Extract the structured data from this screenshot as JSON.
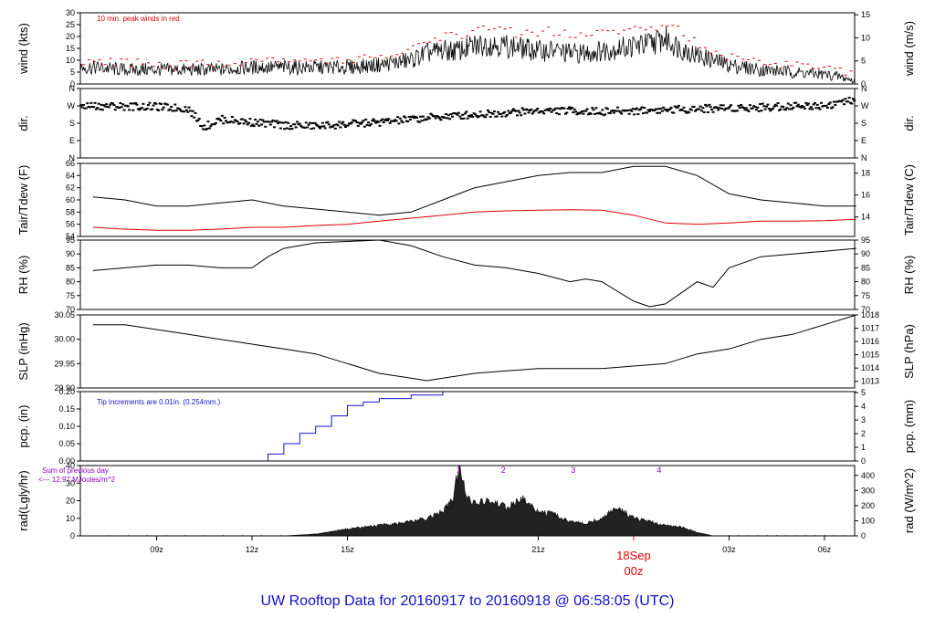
{
  "title": "UW Rooftop Data for 20160917  to  20160918 @ 06:58:05  (UTC)",
  "colors": {
    "series": "#000000",
    "red": "#e00000",
    "blue": "#1414d0",
    "purple": "#9000c0",
    "title": "#1010c8"
  },
  "chart_data": [
    {
      "type": "line",
      "ylabel_left": "wind (kts)",
      "ylabel_right": "wind (m/s)",
      "ylim_left": [
        0,
        30
      ],
      "ylim_right": [
        0,
        15.43
      ],
      "ticks_left": [
        "0",
        "5",
        "10",
        "15",
        "20",
        "25",
        "30"
      ],
      "ticks_right": [
        "0",
        "5",
        "10",
        "15"
      ],
      "annotation": "10 min. peak winds in red",
      "series": [
        {
          "role": "mean",
          "x": [
            7,
            8,
            9,
            10,
            11,
            12,
            13,
            14,
            15,
            16,
            17,
            17.5,
            18,
            18.5,
            19,
            19.5,
            20,
            20.5,
            21,
            21.5,
            22,
            22.5,
            23,
            23.5,
            24,
            24.5,
            25,
            25.5,
            26,
            27,
            28,
            29,
            30,
            30.5,
            31
          ],
          "values": [
            7,
            6,
            6,
            6,
            6,
            7,
            7,
            7,
            7,
            8,
            10,
            13,
            14,
            14,
            16,
            17,
            16,
            15,
            14,
            14,
            13,
            13,
            14,
            15,
            16,
            17,
            19,
            15,
            12,
            8,
            6,
            5,
            4,
            3,
            1
          ]
        },
        {
          "role": "peak",
          "x": [
            7,
            8,
            9,
            10,
            11,
            12,
            13,
            14,
            15,
            16,
            17,
            17.5,
            18,
            18.5,
            19,
            19.5,
            20,
            20.5,
            21,
            21.5,
            22,
            22.5,
            23,
            23.5,
            24,
            24.5,
            25,
            25.5,
            26,
            27,
            28,
            29,
            30,
            30.5,
            31
          ],
          "values": [
            9,
            9,
            8,
            8,
            8,
            10,
            11,
            11,
            10,
            11,
            14,
            18,
            20,
            20,
            22,
            24,
            22,
            21,
            22,
            22,
            20,
            20,
            21,
            22,
            23,
            23,
            25,
            22,
            17,
            11,
            9,
            8,
            6,
            5,
            3
          ]
        }
      ]
    },
    {
      "type": "scatter",
      "ylabel_left": "dir.",
      "ylabel_right": "dir.",
      "ticks_left": [
        "N",
        "E",
        "S",
        "W",
        "N"
      ],
      "ticks_right": [
        "N",
        "E",
        "S",
        "W",
        "N"
      ],
      "ylim": [
        0,
        360
      ],
      "x": [
        7,
        8,
        9,
        10,
        10.5,
        11,
        12,
        13,
        14,
        15,
        16,
        17,
        18,
        19,
        20,
        21,
        22,
        23,
        24,
        25,
        26,
        27,
        28,
        29,
        30,
        31
      ],
      "values": [
        270,
        268,
        265,
        255,
        160,
        200,
        185,
        170,
        165,
        175,
        185,
        200,
        215,
        225,
        235,
        245,
        245,
        240,
        245,
        250,
        255,
        260,
        262,
        270,
        272,
        300
      ]
    },
    {
      "type": "line",
      "ylabel_left": "Tair/Tdew (F)",
      "ylabel_right": "Tair/Tdew (C)",
      "ylim_left": [
        54,
        66
      ],
      "ylim_right": [
        12.22,
        18.89
      ],
      "ticks_left": [
        "54",
        "56",
        "58",
        "60",
        "62",
        "64",
        "66"
      ],
      "ticks_right": [
        "14",
        "16",
        "18"
      ],
      "series": [
        {
          "role": "tair",
          "x": [
            7,
            8,
            9,
            10,
            11,
            12,
            13,
            14,
            15,
            16,
            17,
            18,
            19,
            20,
            21,
            22,
            23,
            24,
            25,
            26,
            27,
            28,
            29,
            30,
            31
          ],
          "values": [
            60.5,
            60,
            59,
            59,
            59.5,
            60,
            59,
            58.5,
            58,
            57.5,
            58,
            60,
            62,
            63,
            64,
            64.5,
            64.5,
            65.5,
            65.5,
            64,
            61,
            60,
            59.5,
            59,
            59
          ]
        },
        {
          "role": "tdew",
          "x": [
            7,
            8,
            9,
            10,
            11,
            12,
            13,
            14,
            15,
            16,
            17,
            18,
            19,
            20,
            21,
            22,
            23,
            24,
            25,
            26,
            27,
            28,
            29,
            30,
            31
          ],
          "values": [
            55.5,
            55.2,
            55,
            55,
            55.2,
            55.5,
            55.5,
            55.8,
            56,
            56.5,
            57,
            57.5,
            58,
            58.2,
            58.3,
            58.4,
            58.3,
            57.5,
            56.2,
            56,
            56.2,
            56.5,
            56.5,
            56.6,
            56.8
          ]
        }
      ]
    },
    {
      "type": "line",
      "ylabel_left": "RH (%)",
      "ylabel_right": "RH (%)",
      "ylim": [
        70,
        95
      ],
      "ticks_left": [
        "70",
        "75",
        "80",
        "85",
        "90",
        "95"
      ],
      "ticks_right": [
        "70",
        "75",
        "80",
        "85",
        "90",
        "95"
      ],
      "x": [
        7,
        8,
        9,
        10,
        11,
        12,
        12.5,
        13,
        14,
        15,
        16,
        17,
        18,
        19,
        20,
        21,
        22,
        22.5,
        23,
        24,
        24.5,
        25,
        25.5,
        26,
        26.5,
        27,
        28,
        29,
        30,
        31
      ],
      "values": [
        84,
        85,
        86,
        86,
        85,
        85,
        89,
        92,
        94,
        94.5,
        95,
        93,
        89,
        86,
        85,
        83,
        80,
        81,
        80,
        73,
        71,
        72,
        76,
        80,
        78,
        85,
        89,
        90,
        91,
        92
      ]
    },
    {
      "type": "line",
      "ylabel_left": "SLP (inHg)",
      "ylabel_right": "SLP (hPa)",
      "ylim_left": [
        29.9,
        30.05
      ],
      "ylim_right": [
        1012.5,
        1018
      ],
      "ticks_left": [
        "29.90",
        "29.95",
        "30.00",
        "30.05"
      ],
      "ticks_right": [
        "1013",
        "1014",
        "1015",
        "1016",
        "1017",
        "1018"
      ],
      "x": [
        7,
        8,
        9,
        10,
        11,
        12,
        13,
        14,
        15,
        16,
        17,
        17.5,
        18,
        19,
        20,
        21,
        22,
        23,
        24,
        25,
        26,
        27,
        28,
        29,
        30,
        31
      ],
      "values": [
        30.03,
        30.03,
        30.02,
        30.01,
        30.0,
        29.99,
        29.98,
        29.97,
        29.95,
        29.93,
        29.92,
        29.915,
        29.92,
        29.93,
        29.935,
        29.94,
        29.94,
        29.94,
        29.945,
        29.95,
        29.97,
        29.98,
        30.0,
        30.01,
        30.03,
        30.05
      ]
    },
    {
      "type": "line",
      "ylabel_left": "pcp. (in)",
      "ylabel_right": "pcp. (mm)",
      "ylim_left": [
        0,
        0.2
      ],
      "ylim_right": [
        0,
        5.08
      ],
      "ticks_left": [
        "0.00",
        "0.05",
        "0.10",
        "0.15",
        "0.20"
      ],
      "ticks_right": [
        "0",
        "1",
        "2",
        "3",
        "4",
        "5"
      ],
      "annotation": "Tip increments are 0.01in. (0.254mm.)",
      "x": [
        7,
        12,
        12.5,
        13,
        13.5,
        14,
        14.5,
        15,
        15.5,
        16,
        17,
        18,
        31
      ],
      "values": [
        0,
        0,
        0.02,
        0.05,
        0.08,
        0.1,
        0.13,
        0.16,
        0.17,
        0.18,
        0.19,
        0.2,
        0.2
      ]
    },
    {
      "type": "area",
      "ylabel_left": "rad(Lgly/hr)",
      "ylabel_right": "rad (W/m^2)",
      "ylim_left": [
        0,
        40
      ],
      "ylim_right": [
        0,
        465
      ],
      "ticks_left": [
        "0",
        "10",
        "20",
        "30",
        "40"
      ],
      "ticks_right": [
        "0",
        "100",
        "200",
        "300",
        "400"
      ],
      "annotation_1": "Sum of previous day",
      "annotation_2": "<--- 12.97 MJoules/m^2",
      "markers": [
        "1",
        "2",
        "3",
        "4"
      ],
      "marker_x": [
        18.5,
        19.9,
        22.1,
        24.8
      ],
      "x": [
        7,
        13,
        14,
        15,
        16,
        17,
        17.5,
        18,
        18.3,
        18.5,
        18.8,
        19,
        19.5,
        20,
        20.5,
        21,
        21.5,
        22,
        22.5,
        23,
        23.5,
        24,
        24.5,
        25,
        25.5,
        26,
        26.5,
        31
      ],
      "values": [
        0,
        0,
        1,
        4,
        6,
        8,
        10,
        14,
        20,
        38,
        22,
        18,
        20,
        16,
        21,
        14,
        12,
        8,
        7,
        10,
        16,
        10,
        8,
        6,
        5,
        2,
        0,
        0
      ]
    }
  ],
  "x_axis": {
    "ticks": [
      "09z",
      "12z",
      "15z",
      "21z",
      "03z",
      "06z"
    ],
    "tick_x": [
      9,
      12,
      15,
      21,
      27,
      30
    ],
    "xlim": [
      6.6,
      30.95
    ],
    "special_tick_x": 24,
    "special_label_1": "18Sep",
    "special_label_2": "00z"
  }
}
